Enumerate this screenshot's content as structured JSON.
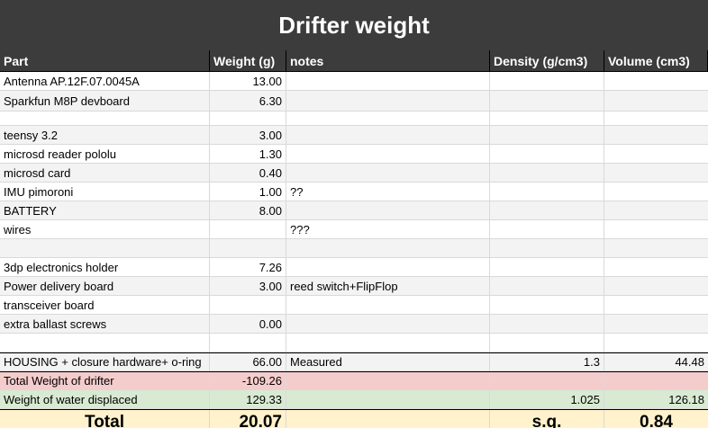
{
  "title": "Drifter weight",
  "columns": [
    "Part",
    "Weight (g)",
    "notes",
    "Density (g/cm3)",
    "Volume (cm3)"
  ],
  "rows": [
    {
      "part": "Antenna AP.12F.07.0045A",
      "weight": "13.00",
      "notes": "",
      "density": "",
      "volume": ""
    },
    {
      "part": "Sparkfun M8P devboard",
      "weight": "6.30",
      "notes": "",
      "density": "",
      "volume": ""
    },
    {
      "part": "",
      "weight": "",
      "notes": "",
      "density": "",
      "volume": ""
    },
    {
      "part": "teensy 3.2",
      "weight": "3.00",
      "notes": "",
      "density": "",
      "volume": ""
    },
    {
      "part": "microsd reader pololu",
      "weight": "1.30",
      "notes": "",
      "density": "",
      "volume": ""
    },
    {
      "part": "microsd card",
      "weight": "0.40",
      "notes": "",
      "density": "",
      "volume": ""
    },
    {
      "part": "IMU pimoroni",
      "weight": "1.00",
      "notes": "??",
      "density": "",
      "volume": ""
    },
    {
      "part": "BATTERY",
      "weight": "8.00",
      "notes": "",
      "density": "",
      "volume": ""
    },
    {
      "part": "wires",
      "weight": "",
      "notes": "???",
      "density": "",
      "volume": ""
    },
    {
      "part": "",
      "weight": "",
      "notes": "",
      "density": "",
      "volume": ""
    },
    {
      "part": "3dp electronics holder",
      "weight": "7.26",
      "notes": "",
      "density": "",
      "volume": ""
    },
    {
      "part": "Power delivery board",
      "weight": "3.00",
      "notes": "reed switch+FlipFlop",
      "density": "",
      "volume": ""
    },
    {
      "part": "transceiver board",
      "weight": "",
      "notes": "",
      "density": "",
      "volume": ""
    },
    {
      "part": "extra ballast screws",
      "weight": "0.00",
      "notes": "",
      "density": "",
      "volume": ""
    },
    {
      "part": "",
      "weight": "",
      "notes": "",
      "density": "",
      "volume": ""
    },
    {
      "part": "HOUSING + closure hardware+ o-ring",
      "weight": "66.00",
      "notes": "Measured",
      "density": "1.3",
      "volume": "44.48"
    }
  ],
  "total_weight": {
    "label": "Total Weight of drifter",
    "weight": "-109.26"
  },
  "water_displaced": {
    "label": "Weight of water displaced",
    "weight": "129.33",
    "density": "1.025",
    "volume": "126.18"
  },
  "total": {
    "label": "Total",
    "weight": "20.07",
    "sg_label": "s.g.",
    "sg_value": "0.84"
  }
}
